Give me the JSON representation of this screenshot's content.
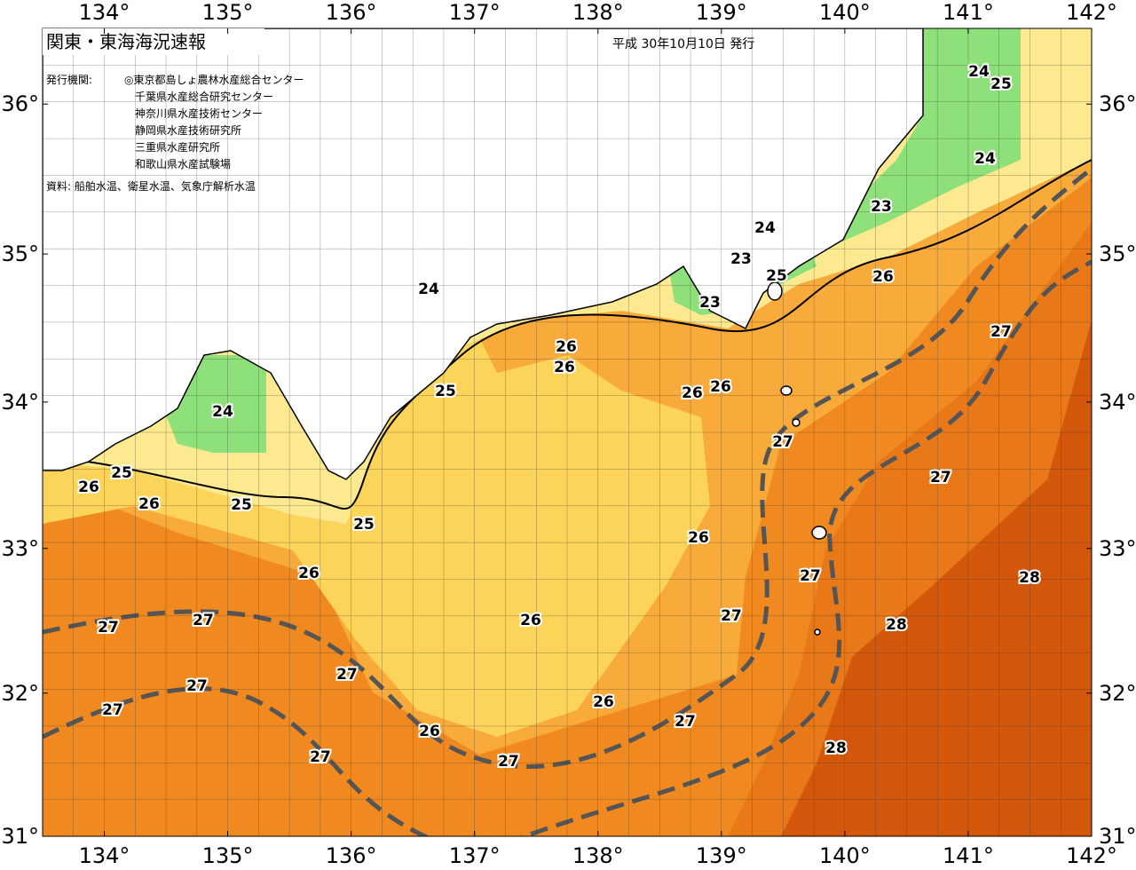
{
  "header": {
    "title": "関東・東海海況速報",
    "date": "平成 30年10月10日 発行"
  },
  "agencies": {
    "label": "発行機関:",
    "items": [
      "◎東京都島しょ農林水産総合センター",
      "千葉県水産総合研究センター",
      "神奈川県水産技術センター",
      "静岡県水産技術研究所",
      "三重県水産研究所",
      "和歌山県水産試験場"
    ]
  },
  "sources": "資料: 船舶水温、衛星水温、気象庁解析水温",
  "map": {
    "xlim": [
      133.5,
      142.0
    ],
    "ylim": [
      31,
      36.5
    ],
    "xticks": [
      {
        "value": 134,
        "label": "134°"
      },
      {
        "value": 135,
        "label": "135°"
      },
      {
        "value": 136,
        "label": "136°"
      },
      {
        "value": 137,
        "label": "137°"
      },
      {
        "value": 138,
        "label": "138°"
      },
      {
        "value": 139,
        "label": "139°"
      },
      {
        "value": 140,
        "label": "140°"
      },
      {
        "value": 141,
        "label": "141°"
      },
      {
        "value": 142,
        "label": "142°"
      }
    ],
    "yticks": [
      {
        "value": 31,
        "label": "31°"
      },
      {
        "value": 32,
        "label": "32°"
      },
      {
        "value": 33,
        "label": "33°"
      },
      {
        "value": 34,
        "label": "34°"
      },
      {
        "value": 35,
        "label": "35°"
      },
      {
        "value": 36,
        "label": "36°"
      }
    ],
    "contour_labels": [
      24,
      25,
      24,
      23,
      24,
      23,
      25,
      23,
      26,
      24,
      26,
      26,
      25,
      26,
      26,
      27,
      27,
      27,
      24,
      25,
      26,
      26,
      25,
      25,
      26,
      26,
      27,
      28,
      27,
      26,
      28,
      27,
      27,
      27,
      27,
      27,
      26,
      27,
      26,
      27,
      27,
      28
    ]
  }
}
